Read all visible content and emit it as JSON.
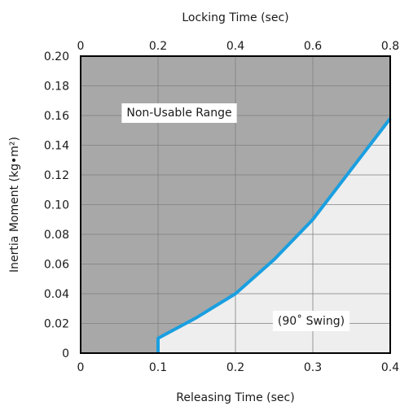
{
  "chart_data": {
    "type": "area",
    "xlabel": "Releasing Time (sec)",
    "x2label": "Locking Time (sec)",
    "ylabel": "Inertia Moment (kg•m²)",
    "xlim": [
      0,
      0.4
    ],
    "x2lim": [
      0,
      0.8
    ],
    "ylim": [
      0,
      0.2
    ],
    "x_ticks": [
      "0",
      "0.1",
      "0.2",
      "0.3",
      "0.4"
    ],
    "x2_ticks": [
      "0",
      "0.2",
      "0.4",
      "0.6",
      "0.8"
    ],
    "y_ticks": [
      "0",
      "0.02",
      "0.04",
      "0.06",
      "0.08",
      "0.10",
      "0.12",
      "0.14",
      "0.16",
      "0.18",
      "0.20"
    ],
    "grid": true,
    "series": [
      {
        "x": [
          0.1,
          0.1,
          0.15,
          0.2,
          0.25,
          0.3,
          0.35,
          0.4
        ],
        "y": [
          0,
          0.01,
          0.024,
          0.04,
          0.063,
          0.09,
          0.124,
          0.158
        ]
      }
    ],
    "region_labels": {
      "upper": "Non-Usable Range",
      "lower": "(90˚ Swing)"
    },
    "colors": {
      "upper_fill": "#a8a8a8",
      "lower_fill": "#eeeeee",
      "curve": "#1a9fe0",
      "grid": "#7f7f7f",
      "frame": "#000000"
    }
  }
}
